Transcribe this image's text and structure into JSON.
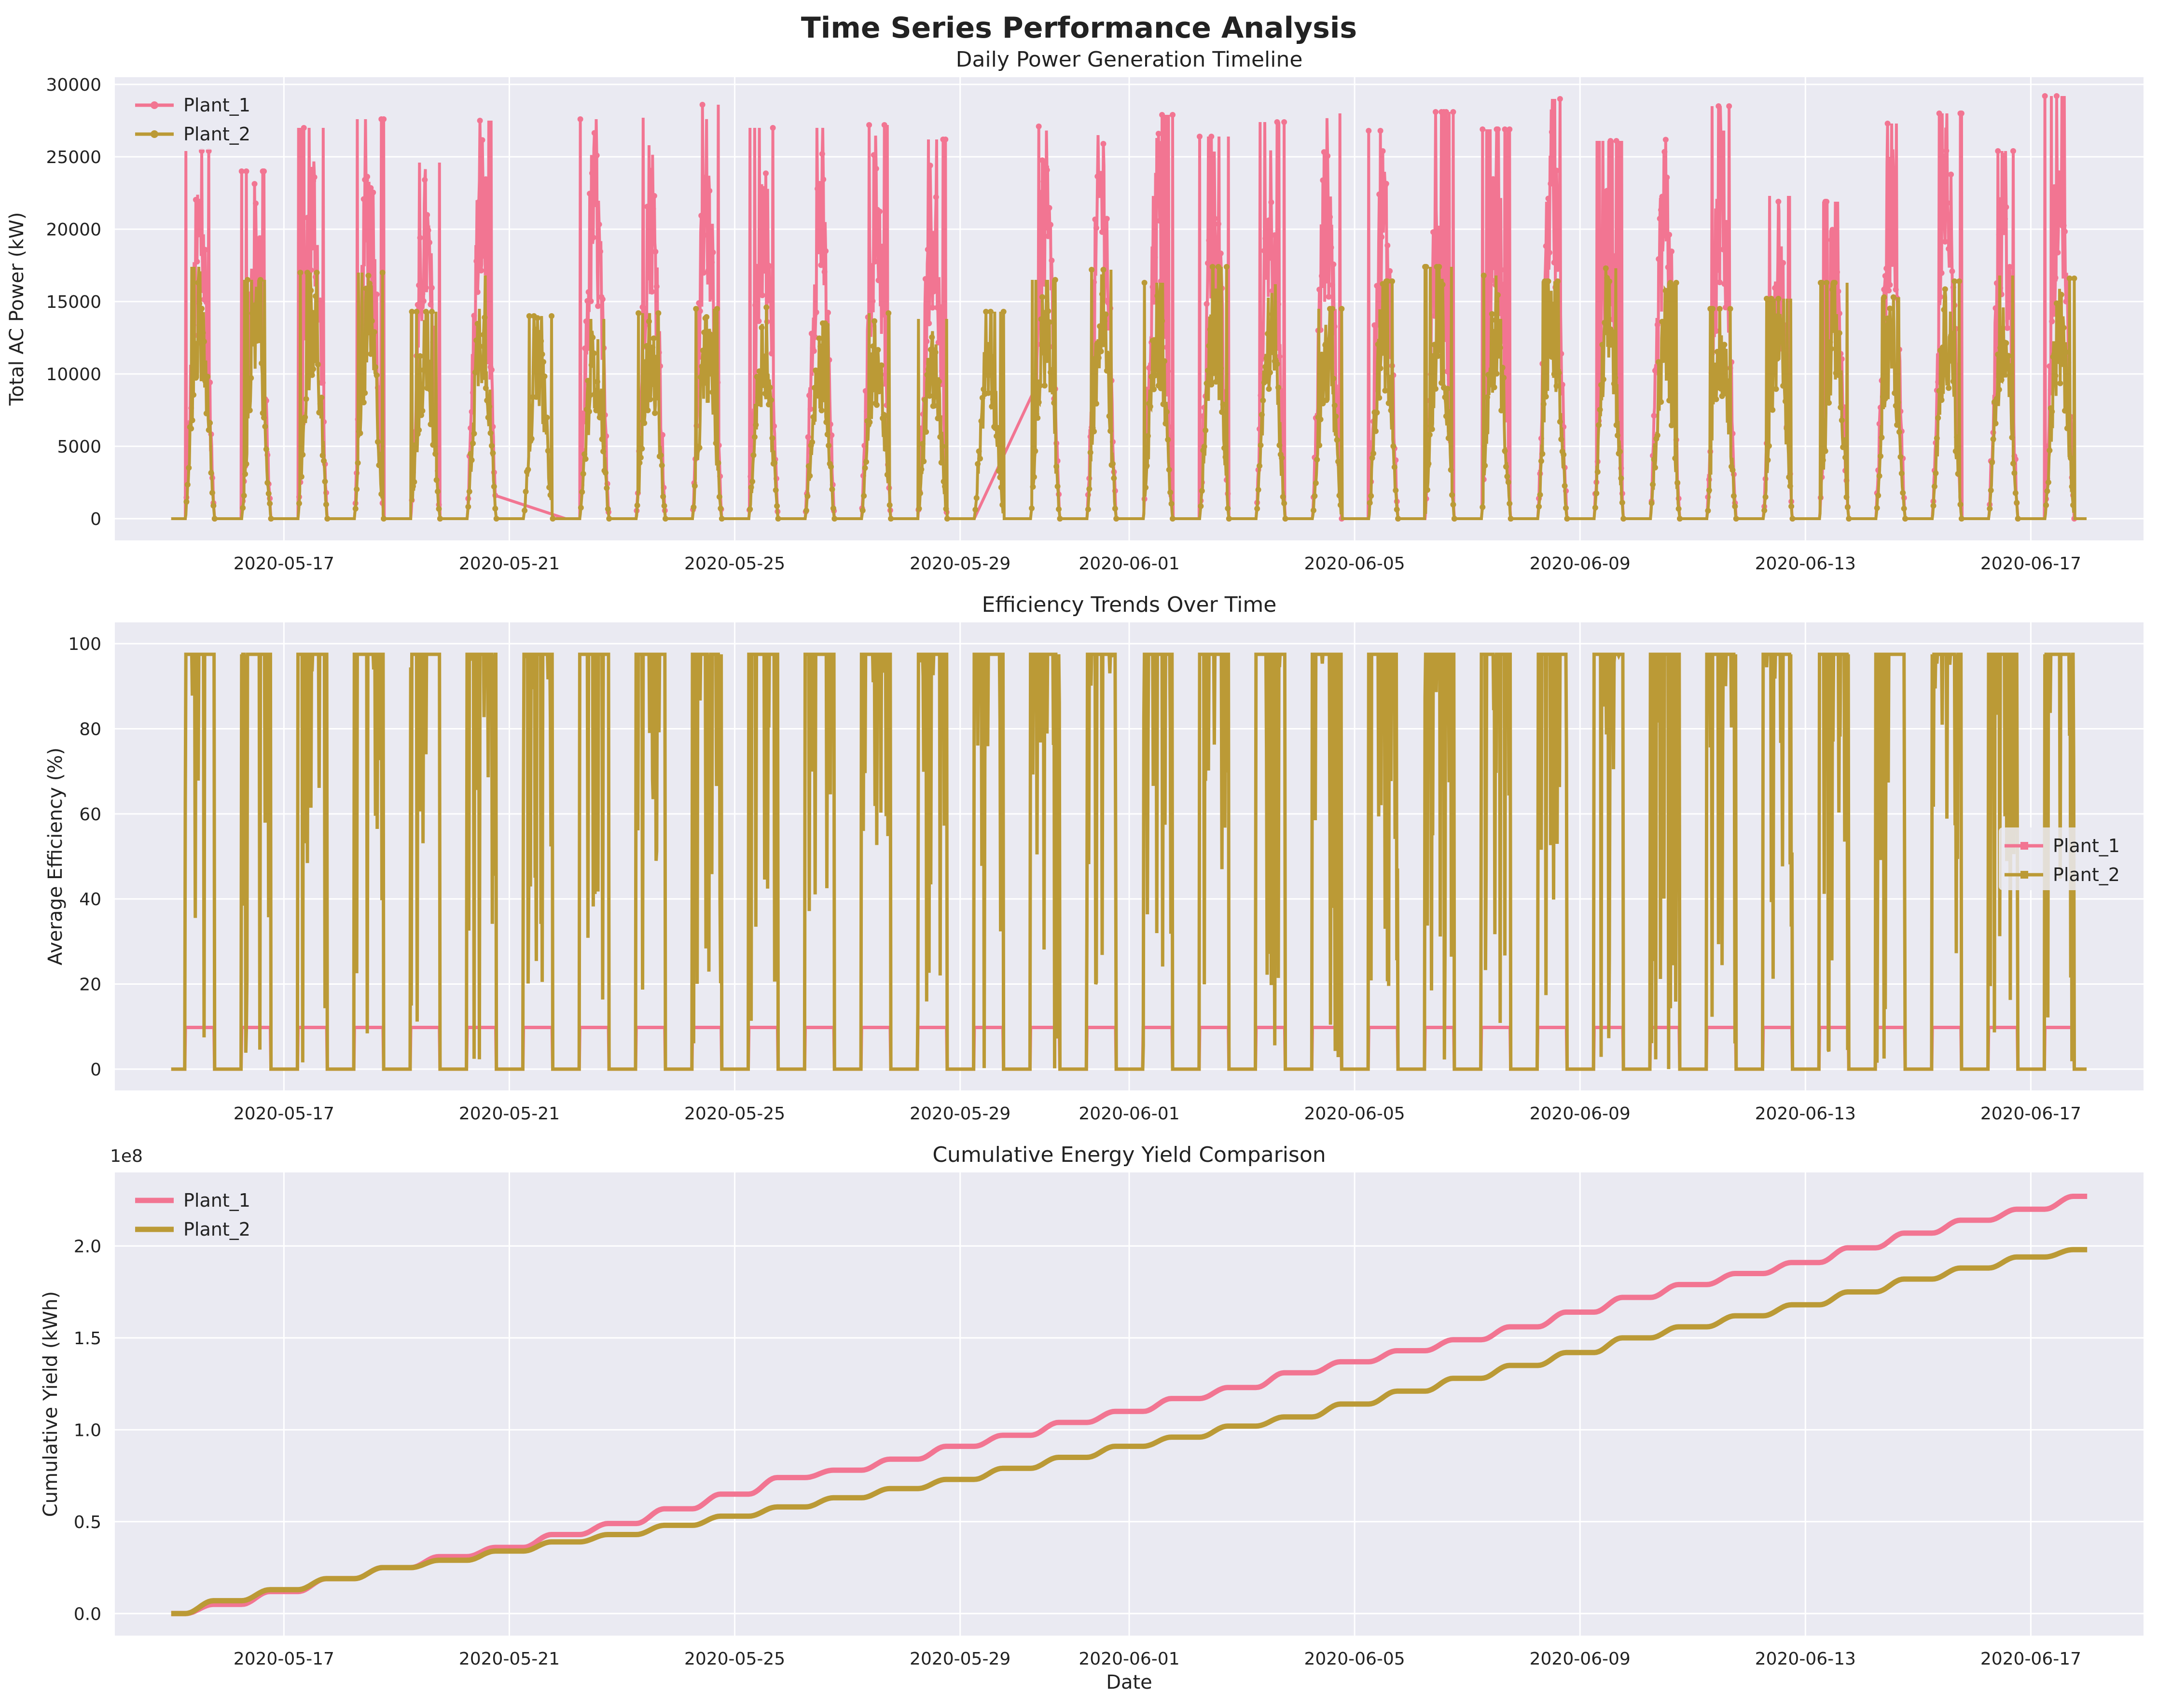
{
  "figure": {
    "title": "Time Series Performance Analysis",
    "colors": {
      "plant_1": "#f27592",
      "plant_2": "#bb9a36",
      "axes_bg": "#eaeaf2",
      "grid": "#ffffff"
    }
  },
  "chart_data": [
    {
      "type": "line",
      "title": "Daily Power Generation Timeline",
      "xlabel": "",
      "ylabel": "Total AC Power (kW)",
      "x_type": "date",
      "xlim": [
        "2020-05-14",
        "2020-06-19"
      ],
      "ylim": [
        -1500,
        30500
      ],
      "x_ticks": [
        "2020-05-17",
        "2020-05-21",
        "2020-05-25",
        "2020-05-29",
        "2020-06-01",
        "2020-06-05",
        "2020-06-09",
        "2020-06-13",
        "2020-06-17"
      ],
      "y_ticks": [
        "0",
        "5000",
        "10000",
        "15000",
        "20000",
        "25000",
        "30000"
      ],
      "y_tick_values": [
        0,
        5000,
        10000,
        15000,
        20000,
        25000,
        30000
      ],
      "grid": true,
      "legend": {
        "placement": "upper-left",
        "entries": [
          "Plant_1",
          "Plant_2"
        ]
      },
      "series": [
        {
          "name": "Plant_1",
          "color": "#f27592",
          "dates": [
            "2020-05-15",
            "2020-05-16",
            "2020-05-17",
            "2020-05-18",
            "2020-05-19",
            "2020-05-20",
            "2020-05-22",
            "2020-05-23",
            "2020-05-24",
            "2020-05-25",
            "2020-05-26",
            "2020-05-27",
            "2020-05-28",
            "2020-05-29",
            "2020-05-30",
            "2020-05-31",
            "2020-06-01",
            "2020-06-02",
            "2020-06-03",
            "2020-06-04",
            "2020-06-05",
            "2020-06-06",
            "2020-06-07",
            "2020-06-08",
            "2020-06-09",
            "2020-06-10",
            "2020-06-11",
            "2020-06-12",
            "2020-06-13",
            "2020-06-14",
            "2020-06-15",
            "2020-06-16",
            "2020-06-17"
          ],
          "daily_peak_kw": [
            25400,
            24000,
            27000,
            27600,
            24600,
            27500,
            27600,
            27700,
            28600,
            27000,
            27000,
            27200,
            26200,
            27800,
            27100,
            29200,
            27900,
            26400,
            27400,
            28000,
            26800,
            28100,
            26900,
            29000,
            26100,
            26600,
            28500,
            22300,
            21900,
            27300,
            28000,
            25400,
            29200
          ],
          "missing_ranges": [
            [
              "2020-05-20T18:00",
              "2020-05-21T06:00"
            ],
            [
              "2020-05-29T06:00",
              "2020-05-30T08:00"
            ]
          ]
        },
        {
          "name": "Plant_2",
          "color": "#bb9a36",
          "dates": [
            "2020-05-15",
            "2020-05-16",
            "2020-05-17",
            "2020-05-18",
            "2020-05-19",
            "2020-05-20",
            "2020-05-21",
            "2020-05-22",
            "2020-05-23",
            "2020-05-24",
            "2020-05-25",
            "2020-05-26",
            "2020-05-27",
            "2020-05-28",
            "2020-05-29",
            "2020-05-30",
            "2020-05-31",
            "2020-06-01",
            "2020-06-02",
            "2020-06-03",
            "2020-06-04",
            "2020-06-05",
            "2020-06-06",
            "2020-06-07",
            "2020-06-08",
            "2020-06-09",
            "2020-06-10",
            "2020-06-11",
            "2020-06-12",
            "2020-06-13",
            "2020-06-14",
            "2020-06-15",
            "2020-06-16",
            "2020-06-17"
          ],
          "daily_peak_kw": [
            17400,
            16500,
            17000,
            17000,
            14300,
            16800,
            14000,
            13800,
            14200,
            14500,
            14600,
            13500,
            14200,
            13800,
            14300,
            16500,
            17200,
            16300,
            17400,
            16200,
            14500,
            16400,
            17400,
            16800,
            16400,
            17300,
            16300,
            14500,
            15200,
            16300,
            15300,
            16400,
            16800,
            16600
          ]
        }
      ]
    },
    {
      "type": "line",
      "title": "Efficiency Trends Over Time",
      "xlabel": "",
      "ylabel": "Average Efficiency (%)",
      "x_type": "date",
      "xlim": [
        "2020-05-14",
        "2020-06-19"
      ],
      "ylim": [
        -5,
        105
      ],
      "x_ticks": [
        "2020-05-17",
        "2020-05-21",
        "2020-05-25",
        "2020-05-29",
        "2020-06-01",
        "2020-06-05",
        "2020-06-09",
        "2020-06-13",
        "2020-06-17"
      ],
      "y_ticks": [
        "0",
        "20",
        "40",
        "60",
        "80",
        "100"
      ],
      "y_tick_values": [
        0,
        20,
        40,
        60,
        80,
        100
      ],
      "grid": true,
      "legend": {
        "placement": "center-right",
        "entries": [
          "Plant_1",
          "Plant_2"
        ]
      },
      "series": [
        {
          "name": "Plant_1",
          "color": "#f27592",
          "daytime_value": 9.8,
          "night_value": 0
        },
        {
          "name": "Plant_2",
          "color": "#bb9a36",
          "daytime_value": 97.5,
          "night_value": 0
        }
      ]
    },
    {
      "type": "line",
      "title": "Cumulative Energy Yield Comparison",
      "xlabel": "Date",
      "ylabel": "Cumulative Yield (kWh)",
      "x_type": "date",
      "xlim": [
        "2020-05-14",
        "2020-06-19"
      ],
      "ylim": [
        -0.12,
        2.4
      ],
      "y_scale_label": "1e8",
      "x_ticks": [
        "2020-05-17",
        "2020-05-21",
        "2020-05-25",
        "2020-05-29",
        "2020-06-01",
        "2020-06-05",
        "2020-06-09",
        "2020-06-13",
        "2020-06-17"
      ],
      "y_ticks": [
        "0.0",
        "0.5",
        "1.0",
        "1.5",
        "2.0"
      ],
      "y_tick_values": [
        0,
        0.5,
        1.0,
        1.5,
        2.0
      ],
      "grid": true,
      "legend": {
        "placement": "upper-left",
        "entries": [
          "Plant_1",
          "Plant_2"
        ]
      },
      "series": [
        {
          "name": "Plant_1",
          "color": "#f27592",
          "x": [
            "2020-05-15",
            "2020-05-16",
            "2020-05-17",
            "2020-05-18",
            "2020-05-19",
            "2020-05-20",
            "2020-05-21",
            "2020-05-22",
            "2020-05-23",
            "2020-05-24",
            "2020-05-25",
            "2020-05-26",
            "2020-05-27",
            "2020-05-28",
            "2020-05-29",
            "2020-05-30",
            "2020-05-31",
            "2020-06-01",
            "2020-06-02",
            "2020-06-03",
            "2020-06-04",
            "2020-06-05",
            "2020-06-06",
            "2020-06-07",
            "2020-06-08",
            "2020-06-09",
            "2020-06-10",
            "2020-06-11",
            "2020-06-12",
            "2020-06-13",
            "2020-06-14",
            "2020-06-15",
            "2020-06-16",
            "2020-06-17",
            "2020-06-18"
          ],
          "values": [
            0.0,
            0.05,
            0.12,
            0.19,
            0.25,
            0.31,
            0.36,
            0.43,
            0.49,
            0.57,
            0.65,
            0.74,
            0.78,
            0.84,
            0.91,
            0.97,
            1.04,
            1.1,
            1.17,
            1.23,
            1.31,
            1.37,
            1.43,
            1.49,
            1.56,
            1.64,
            1.72,
            1.79,
            1.85,
            1.91,
            1.99,
            2.07,
            2.14,
            2.2,
            2.27
          ]
        },
        {
          "name": "Plant_2",
          "color": "#bb9a36",
          "x": [
            "2020-05-15",
            "2020-05-16",
            "2020-05-17",
            "2020-05-18",
            "2020-05-19",
            "2020-05-20",
            "2020-05-21",
            "2020-05-22",
            "2020-05-23",
            "2020-05-24",
            "2020-05-25",
            "2020-05-26",
            "2020-05-27",
            "2020-05-28",
            "2020-05-29",
            "2020-05-30",
            "2020-05-31",
            "2020-06-01",
            "2020-06-02",
            "2020-06-03",
            "2020-06-04",
            "2020-06-05",
            "2020-06-06",
            "2020-06-07",
            "2020-06-08",
            "2020-06-09",
            "2020-06-10",
            "2020-06-11",
            "2020-06-12",
            "2020-06-13",
            "2020-06-14",
            "2020-06-15",
            "2020-06-16",
            "2020-06-17",
            "2020-06-18"
          ],
          "values": [
            0.0,
            0.07,
            0.13,
            0.19,
            0.25,
            0.29,
            0.34,
            0.39,
            0.43,
            0.48,
            0.53,
            0.58,
            0.63,
            0.68,
            0.73,
            0.79,
            0.85,
            0.91,
            0.96,
            1.02,
            1.07,
            1.14,
            1.21,
            1.28,
            1.35,
            1.42,
            1.5,
            1.56,
            1.62,
            1.68,
            1.75,
            1.82,
            1.88,
            1.94,
            1.98
          ]
        }
      ]
    }
  ]
}
